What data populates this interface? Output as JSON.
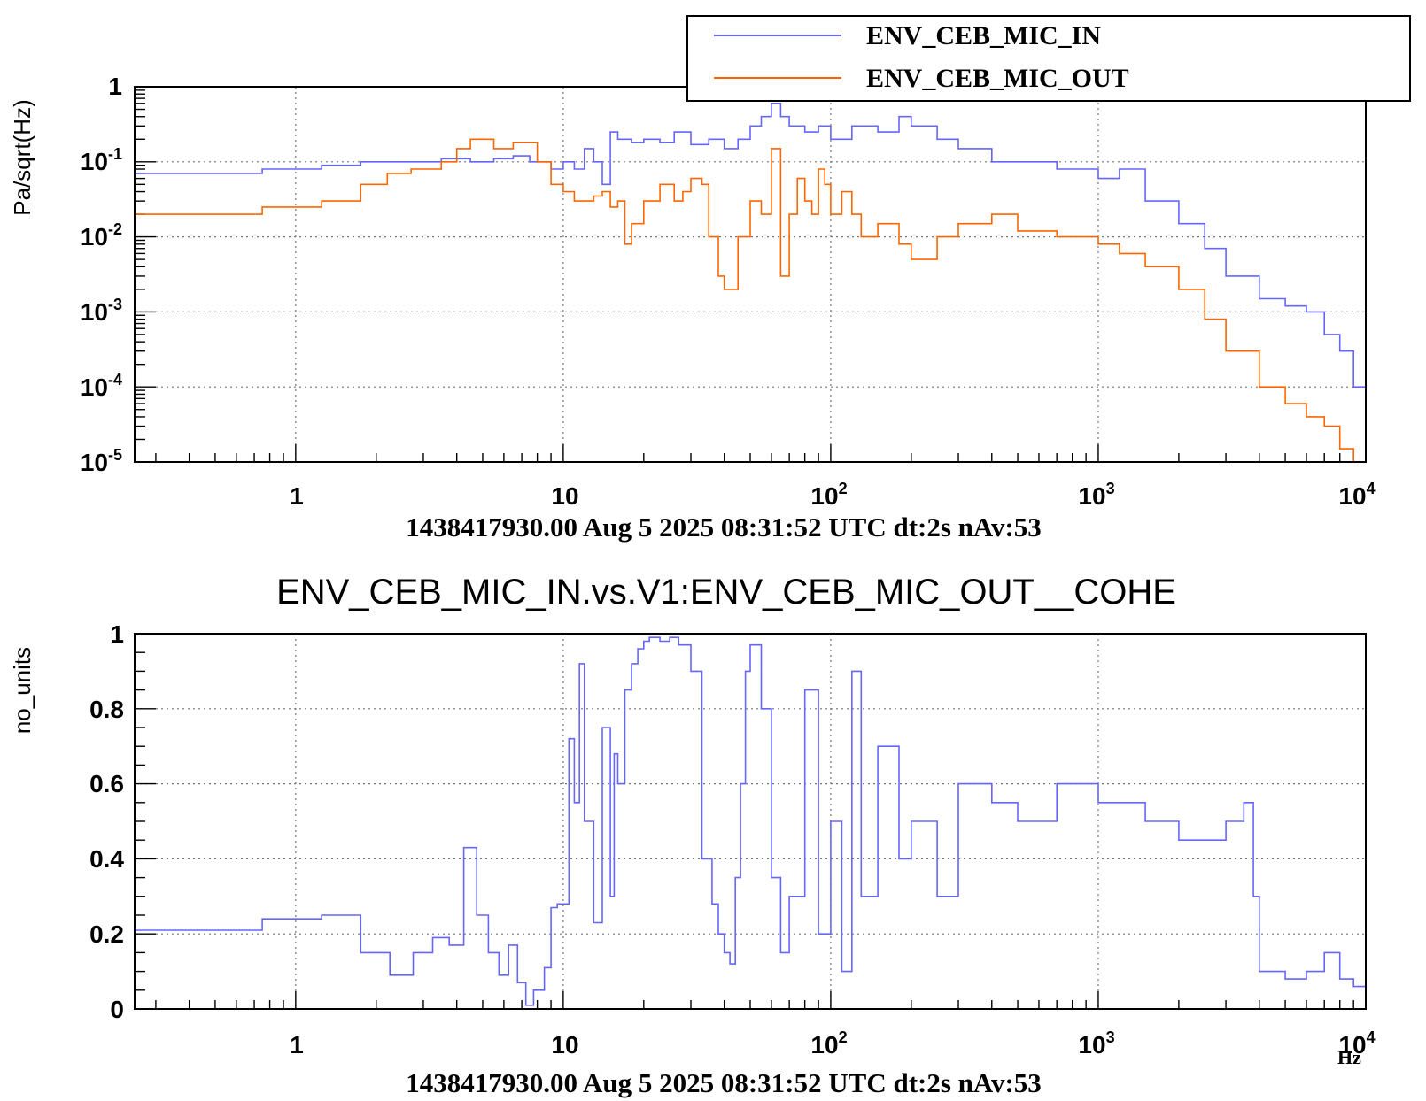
{
  "chart_data": [
    {
      "type": "line",
      "scale": {
        "x": "log",
        "y": "log"
      },
      "xlim": [
        0.25,
        10000
      ],
      "ylim": [
        1e-05,
        1
      ],
      "ylabel": "Pa/sqrt(Hz)",
      "grid": true,
      "legend_position": "top-right",
      "x_tick_labels": [
        {
          "base": "1",
          "exp": ""
        },
        {
          "base": "10",
          "exp": ""
        },
        {
          "base": "10",
          "exp": "2"
        },
        {
          "base": "10",
          "exp": "3"
        },
        {
          "base": "10",
          "exp": "4"
        }
      ],
      "y_tick_labels": [
        {
          "base": "1",
          "exp": ""
        },
        {
          "base": "10",
          "exp": "-1"
        },
        {
          "base": "10",
          "exp": "-2"
        },
        {
          "base": "10",
          "exp": "-3"
        },
        {
          "base": "10",
          "exp": "-4"
        },
        {
          "base": "10",
          "exp": "-5"
        }
      ],
      "footer": "1438417930.00 Aug 5 2025 08:31:52 UTC dt:2s nAv:53",
      "series": [
        {
          "name": "ENV_CEB_MIC_IN",
          "color": "#6666ff",
          "x": [
            0.25,
            0.75,
            1.25,
            1.75,
            2.5,
            3.5,
            4.5,
            5.5,
            6.5,
            7.5,
            9,
            10,
            11,
            12,
            13,
            14,
            15,
            16,
            18,
            20,
            23,
            26,
            30,
            35,
            40,
            45,
            50,
            55,
            60,
            65,
            70,
            80,
            90,
            100,
            120,
            150,
            180,
            200,
            250,
            300,
            400,
            500,
            700,
            1000,
            1200,
            1500,
            2000,
            2500,
            3000,
            4000,
            5000,
            6000,
            7000,
            8000,
            9000,
            10000
          ],
          "y": [
            0.07,
            0.08,
            0.09,
            0.1,
            0.1,
            0.11,
            0.1,
            0.11,
            0.12,
            0.1,
            0.08,
            0.1,
            0.08,
            0.15,
            0.1,
            0.05,
            0.25,
            0.2,
            0.18,
            0.2,
            0.18,
            0.25,
            0.17,
            0.2,
            0.15,
            0.2,
            0.3,
            0.4,
            0.6,
            0.4,
            0.3,
            0.25,
            0.3,
            0.2,
            0.3,
            0.25,
            0.4,
            0.3,
            0.2,
            0.15,
            0.1,
            0.1,
            0.08,
            0.06,
            0.08,
            0.03,
            0.015,
            0.007,
            0.003,
            0.0015,
            0.0012,
            0.001,
            0.0005,
            0.0003,
            0.0001,
            3e-05
          ]
        },
        {
          "name": "ENV_CEB_MIC_OUT",
          "color": "#ff6600",
          "x": [
            0.25,
            0.75,
            1.25,
            1.75,
            2.2,
            2.7,
            3.5,
            4,
            4.5,
            5,
            5.5,
            6,
            6.5,
            7,
            8,
            9,
            10,
            11,
            12,
            13,
            14,
            15,
            16,
            17,
            18,
            20,
            23,
            26,
            28,
            30,
            33,
            35,
            38,
            40,
            45,
            50,
            55,
            60,
            65,
            70,
            75,
            80,
            85,
            90,
            95,
            100,
            110,
            120,
            130,
            150,
            180,
            200,
            250,
            300,
            400,
            500,
            700,
            1000,
            1200,
            1500,
            2000,
            2500,
            3000,
            4000,
            5000,
            6000,
            7000,
            8000,
            9000
          ],
          "y": [
            0.02,
            0.025,
            0.03,
            0.05,
            0.07,
            0.08,
            0.1,
            0.15,
            0.2,
            0.2,
            0.15,
            0.15,
            0.18,
            0.18,
            0.1,
            0.05,
            0.04,
            0.03,
            0.03,
            0.035,
            0.04,
            0.025,
            0.03,
            0.008,
            0.015,
            0.03,
            0.05,
            0.03,
            0.04,
            0.06,
            0.05,
            0.01,
            0.003,
            0.002,
            0.01,
            0.03,
            0.02,
            0.15,
            0.003,
            0.02,
            0.06,
            0.03,
            0.02,
            0.08,
            0.05,
            0.02,
            0.04,
            0.02,
            0.01,
            0.015,
            0.008,
            0.005,
            0.01,
            0.015,
            0.02,
            0.012,
            0.01,
            0.008,
            0.006,
            0.004,
            0.002,
            0.0008,
            0.0003,
            0.0001,
            6e-05,
            4e-05,
            3e-05,
            1.5e-05,
            8e-06
          ]
        }
      ]
    },
    {
      "type": "line",
      "scale": {
        "x": "log",
        "y": "linear"
      },
      "title": "ENV_CEB_MIC_IN.vs.V1:ENV_CEB_MIC_OUT__COHE",
      "xlim": [
        0.25,
        10000
      ],
      "ylim": [
        0,
        1
      ],
      "ylabel": "no_units",
      "xunit": "Hz",
      "grid": true,
      "x_tick_labels": [
        {
          "base": "1",
          "exp": ""
        },
        {
          "base": "10",
          "exp": ""
        },
        {
          "base": "10",
          "exp": "2"
        },
        {
          "base": "10",
          "exp": "3"
        },
        {
          "base": "10",
          "exp": "4"
        }
      ],
      "y_tick_labels": [
        "0",
        "0.2",
        "0.4",
        "0.6",
        "0.8",
        "1"
      ],
      "footer": "1438417930.00 Aug 5 2025 08:31:52 UTC dt:2s nAv:53",
      "series": [
        {
          "color": "#6666ff",
          "x": [
            0.25,
            0.75,
            1.25,
            1.75,
            2.25,
            2.75,
            3.25,
            3.75,
            4.25,
            4.75,
            5.25,
            5.75,
            6.25,
            6.75,
            7.25,
            7.75,
            8.5,
            9,
            9.5,
            10.5,
            11,
            11.5,
            12,
            13,
            14,
            15,
            15.5,
            16,
            17,
            18,
            19,
            20,
            21,
            22,
            23,
            25,
            27,
            30,
            33,
            36,
            38,
            40,
            42,
            44,
            46,
            48,
            50,
            55,
            60,
            65,
            70,
            80,
            90,
            100,
            110,
            120,
            130,
            150,
            180,
            200,
            250,
            300,
            400,
            500,
            700,
            1000,
            1500,
            2000,
            2500,
            3000,
            3500,
            3800,
            4000,
            5000,
            6000,
            7000,
            8000,
            9000,
            10000
          ],
          "y": [
            0.21,
            0.24,
            0.25,
            0.15,
            0.09,
            0.15,
            0.19,
            0.17,
            0.43,
            0.25,
            0.15,
            0.09,
            0.17,
            0.07,
            0.01,
            0.05,
            0.11,
            0.27,
            0.28,
            0.72,
            0.55,
            0.92,
            0.5,
            0.23,
            0.75,
            0.3,
            0.68,
            0.6,
            0.85,
            0.92,
            0.96,
            0.98,
            0.99,
            0.99,
            0.98,
            0.99,
            0.97,
            0.9,
            0.4,
            0.28,
            0.2,
            0.15,
            0.12,
            0.35,
            0.6,
            0.9,
            0.97,
            0.8,
            0.35,
            0.15,
            0.3,
            0.85,
            0.2,
            0.5,
            0.1,
            0.9,
            0.3,
            0.7,
            0.4,
            0.5,
            0.3,
            0.6,
            0.55,
            0.5,
            0.6,
            0.55,
            0.5,
            0.45,
            0.45,
            0.5,
            0.55,
            0.3,
            0.1,
            0.08,
            0.1,
            0.15,
            0.08,
            0.06,
            0.1
          ]
        }
      ]
    }
  ]
}
